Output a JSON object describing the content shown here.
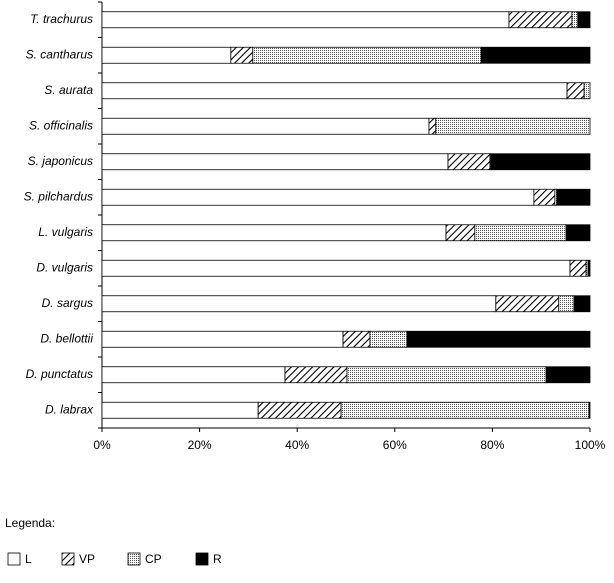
{
  "chart_data": {
    "type": "bar",
    "orientation": "horizontal",
    "stacked": true,
    "categories": [
      "T. trachurus",
      "S. cantharus",
      "S. aurata",
      "S. officinalis",
      "S. japonicus",
      "S. pilchardus",
      "L. vulgaris",
      "D. vulgaris",
      "D. sargus",
      "D. bellottii",
      "D. punctatus",
      "D. labrax"
    ],
    "series": [
      {
        "name": "L",
        "color": "#ffffff",
        "pattern": "solid",
        "values": [
          83.4,
          26.4,
          95.3,
          67.0,
          70.9,
          88.5,
          70.5,
          95.9,
          80.7,
          49.4,
          37.5,
          32.0
        ]
      },
      {
        "name": "VP",
        "color": "#000000",
        "pattern": "hatch",
        "values": [
          12.9,
          4.5,
          3.5,
          1.4,
          8.6,
          4.3,
          5.9,
          3.3,
          12.9,
          5.5,
          12.7,
          17.0
        ]
      },
      {
        "name": "CP",
        "color": "#000000",
        "pattern": "dots",
        "values": [
          1.2,
          46.8,
          1.2,
          31.6,
          0.2,
          0.4,
          18.7,
          0.4,
          3.1,
          7.6,
          40.8,
          50.8
        ]
      },
      {
        "name": "R",
        "color": "#000000",
        "pattern": "solid",
        "values": [
          2.5,
          22.3,
          0,
          0,
          20.3,
          6.8,
          4.9,
          0.4,
          3.3,
          37.5,
          9.0,
          0.2
        ]
      }
    ],
    "xlim": [
      0,
      100
    ],
    "xticks": [
      {
        "value": 0,
        "label": "0%"
      },
      {
        "value": 20,
        "label": "20%"
      },
      {
        "value": 40,
        "label": "40%"
      },
      {
        "value": 60,
        "label": "60%"
      },
      {
        "value": 80,
        "label": "80%"
      },
      {
        "value": 100,
        "label": "100%"
      }
    ],
    "legend_title": "Legenda:",
    "legend": "bottom-left"
  }
}
